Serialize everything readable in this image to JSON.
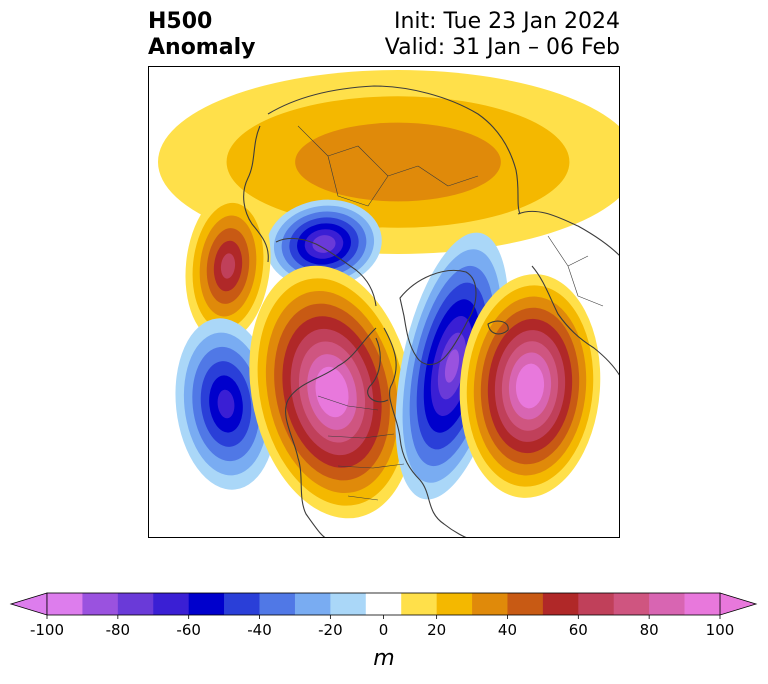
{
  "title": {
    "left_line1": "H500",
    "left_line2": "Anomaly",
    "right_line1": "Init: Tue 23 Jan 2024",
    "right_line2": "Valid: 31 Jan – 06 Feb"
  },
  "colorbar": {
    "units": "m",
    "extend": "both",
    "levels": [
      -100,
      -90,
      -80,
      -70,
      -60,
      -50,
      -40,
      -30,
      -20,
      -10,
      10,
      20,
      30,
      40,
      50,
      60,
      70,
      80,
      90,
      100
    ],
    "colors": [
      "#dd7ded",
      "#9a52df",
      "#6a3ad8",
      "#3a1fd4",
      "#0000cc",
      "#2a3fd8",
      "#5078e6",
      "#79acf2",
      "#aad7f8",
      "#ffffff",
      "#ffe04a",
      "#f4b800",
      "#e08a0a",
      "#c85a14",
      "#b02828",
      "#c0405a",
      "#cf5580",
      "#d865b2",
      "#e878dc"
    ],
    "tick_values": [
      -100,
      -80,
      -60,
      -40,
      -20,
      0,
      20,
      40,
      60,
      80,
      100
    ],
    "tick_labels": [
      "-100",
      "-80",
      "-60",
      "-40",
      "-20",
      "0",
      "20",
      "40",
      "60",
      "80",
      "100"
    ]
  },
  "map": {
    "projection": "north-polar-stereographic",
    "coastline_color": "#3c3c3c",
    "background": "#ffffff",
    "features": [
      {
        "name": "ridge-arctic-greenland",
        "kind": "ridge",
        "peak_m": 35
      },
      {
        "name": "trough-west-siberia",
        "kind": "trough",
        "peak_m": -75
      },
      {
        "name": "ridge-central-asia",
        "kind": "ridge",
        "peak_m": 60
      },
      {
        "name": "trough-north-pacific",
        "kind": "trough",
        "peak_m": -60
      },
      {
        "name": "ridge-western-north-america",
        "kind": "ridge",
        "peak_m": 100
      },
      {
        "name": "trough-eastern-north-america",
        "kind": "trough",
        "peak_m": -80
      },
      {
        "name": "ridge-north-atlantic",
        "kind": "ridge",
        "peak_m": 100
      }
    ]
  }
}
